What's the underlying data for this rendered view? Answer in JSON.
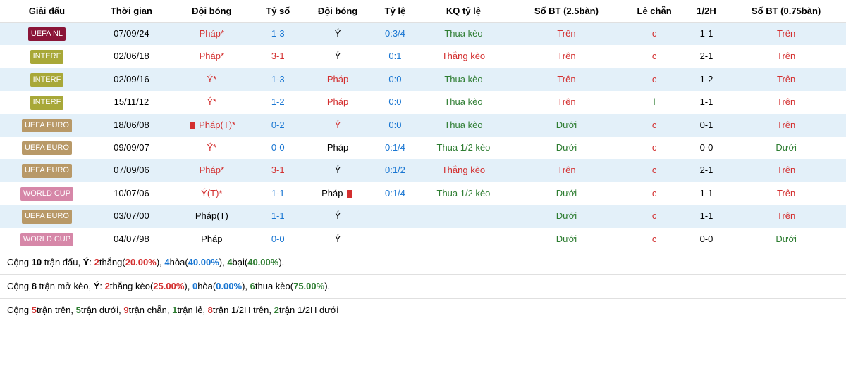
{
  "colors": {
    "red": "#d32f2f",
    "blue": "#1976d2",
    "green": "#2e7d32",
    "black": "#000000",
    "badge_uefanl": "#8a1538",
    "badge_interf": "#a8a838",
    "badge_uefaeuro": "#b89968",
    "badge_worldcup": "#d687a8"
  },
  "headers": [
    "Giải đấu",
    "Thời gian",
    "Đội bóng",
    "Tỷ số",
    "Đội bóng",
    "Tỷ lệ",
    "KQ tỷ lệ",
    "Số BT (2.5bàn)",
    "Lẻ chẵn",
    "1/2H",
    "Số BT (0.75bàn)"
  ],
  "rows": [
    {
      "comp": "UEFA NL",
      "comp_color": "badge_uefanl",
      "date": "07/09/24",
      "home": "Pháp",
      "home_red": false,
      "home_star": true,
      "home_color": "red",
      "score": "1-3",
      "score_color": "blue",
      "away": "Ý",
      "away_red": false,
      "away_star": false,
      "away_color": "black",
      "ratio": "0:3/4",
      "ratio_color": "blue",
      "result": "Thua kèo",
      "result_color": "green",
      "bt25": "Trên",
      "bt25_color": "red",
      "odd": "c",
      "odd_color": "red",
      "half": "1-1",
      "half_text": "",
      "bt075": "Trên",
      "bt075_color": "red"
    },
    {
      "comp": "INTERF",
      "comp_color": "badge_interf",
      "date": "02/06/18",
      "home": "Pháp",
      "home_red": false,
      "home_star": true,
      "home_color": "red",
      "score": "3-1",
      "score_color": "red",
      "away": "Ý",
      "away_red": false,
      "away_star": false,
      "away_color": "black",
      "ratio": "0:1",
      "ratio_color": "blue",
      "result": "Thắng kèo",
      "result_color": "red",
      "bt25": "Trên",
      "bt25_color": "red",
      "odd": "c",
      "odd_color": "red",
      "half": "2-1",
      "half_text": "",
      "bt075": "Trên",
      "bt075_color": "red"
    },
    {
      "comp": "INTERF",
      "comp_color": "badge_interf",
      "date": "02/09/16",
      "home": "Ý",
      "home_red": false,
      "home_star": true,
      "home_color": "red",
      "score": "1-3",
      "score_color": "blue",
      "away": "Pháp",
      "away_red": false,
      "away_star": false,
      "away_color": "red",
      "ratio": "0:0",
      "ratio_color": "blue",
      "result": "Thua kèo",
      "result_color": "green",
      "bt25": "Trên",
      "bt25_color": "red",
      "odd": "c",
      "odd_color": "red",
      "half": "1-2",
      "half_text": "",
      "bt075": "Trên",
      "bt075_color": "red"
    },
    {
      "comp": "INTERF",
      "comp_color": "badge_interf",
      "date": "15/11/12",
      "home": "Ý",
      "home_red": false,
      "home_star": true,
      "home_color": "red",
      "score": "1-2",
      "score_color": "blue",
      "away": "Pháp",
      "away_red": false,
      "away_star": false,
      "away_color": "red",
      "ratio": "0:0",
      "ratio_color": "blue",
      "result": "Thua kèo",
      "result_color": "green",
      "bt25": "Trên",
      "bt25_color": "red",
      "odd": "l",
      "odd_color": "green",
      "half": "1-1",
      "half_text": "",
      "bt075": "Trên",
      "bt075_color": "red"
    },
    {
      "comp": "UEFA EURO",
      "comp_color": "badge_uefaeuro",
      "date": "18/06/08",
      "home": "Pháp(T)",
      "home_red": true,
      "home_star": true,
      "home_color": "red",
      "score": "0-2",
      "score_color": "blue",
      "away": "Ý",
      "away_red": false,
      "away_star": false,
      "away_color": "red",
      "ratio": "0:0",
      "ratio_color": "blue",
      "result": "Thua kèo",
      "result_color": "green",
      "bt25": "Dưới",
      "bt25_color": "green",
      "odd": "c",
      "odd_color": "red",
      "half": "0-1",
      "half_text": "",
      "bt075": "Trên",
      "bt075_color": "red"
    },
    {
      "comp": "UEFA EURO",
      "comp_color": "badge_uefaeuro",
      "date": "09/09/07",
      "home": "Ý",
      "home_red": false,
      "home_star": true,
      "home_color": "red",
      "score": "0-0",
      "score_color": "blue",
      "away": "Pháp",
      "away_red": false,
      "away_star": false,
      "away_color": "black",
      "ratio": "0:1/4",
      "ratio_color": "blue",
      "result": "Thua 1/2 kèo",
      "result_color": "green",
      "bt25": "Dưới",
      "bt25_color": "green",
      "odd": "c",
      "odd_color": "red",
      "half": "0-0",
      "half_text": "",
      "bt075": "Dưới",
      "bt075_color": "green"
    },
    {
      "comp": "UEFA EURO",
      "comp_color": "badge_uefaeuro",
      "date": "07/09/06",
      "home": "Pháp",
      "home_red": false,
      "home_star": true,
      "home_color": "red",
      "score": "3-1",
      "score_color": "red",
      "away": "Ý",
      "away_red": false,
      "away_star": false,
      "away_color": "black",
      "ratio": "0:1/2",
      "ratio_color": "blue",
      "result": "Thắng kèo",
      "result_color": "red",
      "bt25": "Trên",
      "bt25_color": "red",
      "odd": "c",
      "odd_color": "red",
      "half": "2-1",
      "half_text": "",
      "bt075": "Trên",
      "bt075_color": "red"
    },
    {
      "comp": "WORLD CUP",
      "comp_color": "badge_worldcup",
      "date": "10/07/06",
      "home": "Ý(T)",
      "home_red": false,
      "home_star": true,
      "home_color": "red",
      "score": "1-1",
      "score_color": "blue",
      "away": "Pháp",
      "away_red": true,
      "away_star": false,
      "away_color": "black",
      "ratio": "0:1/4",
      "ratio_color": "blue",
      "result": "Thua 1/2 kèo",
      "result_color": "green",
      "bt25": "Dưới",
      "bt25_color": "green",
      "odd": "c",
      "odd_color": "red",
      "half": "1-1",
      "half_text": "",
      "bt075": "Trên",
      "bt075_color": "red"
    },
    {
      "comp": "UEFA EURO",
      "comp_color": "badge_uefaeuro",
      "date": "03/07/00",
      "home": "Pháp(T)",
      "home_red": false,
      "home_star": false,
      "home_color": "black",
      "score": "1-1",
      "score_color": "blue",
      "away": "Ý",
      "away_red": false,
      "away_star": false,
      "away_color": "black",
      "ratio": "",
      "ratio_color": "blue",
      "result": "",
      "result_color": "green",
      "bt25": "Dưới",
      "bt25_color": "green",
      "odd": "c",
      "odd_color": "red",
      "half": "1-1",
      "half_text": "",
      "bt075": "Trên",
      "bt075_color": "red"
    },
    {
      "comp": "WORLD CUP",
      "comp_color": "badge_worldcup",
      "date": "04/07/98",
      "home": "Pháp",
      "home_red": false,
      "home_star": false,
      "home_color": "black",
      "score": "0-0",
      "score_color": "blue",
      "away": "Ý",
      "away_red": false,
      "away_star": false,
      "away_color": "black",
      "ratio": "",
      "ratio_color": "blue",
      "result": "",
      "result_color": "green",
      "bt25": "Dưới",
      "bt25_color": "green",
      "odd": "c",
      "odd_color": "red",
      "half": "0-0",
      "half_text": "",
      "bt075": "Dưới",
      "bt075_color": "green"
    }
  ],
  "summary": [
    [
      {
        "t": "Cộng ",
        "c": "black"
      },
      {
        "t": "10",
        "c": "black",
        "b": true
      },
      {
        "t": " trận đấu, ",
        "c": "black"
      },
      {
        "t": "Ý",
        "c": "black",
        "b": true
      },
      {
        "t": ": ",
        "c": "black"
      },
      {
        "t": "2",
        "c": "red",
        "b": true
      },
      {
        "t": "thắng(",
        "c": "black"
      },
      {
        "t": "20.00%",
        "c": "red",
        "b": true
      },
      {
        "t": "), ",
        "c": "black"
      },
      {
        "t": "4",
        "c": "blue",
        "b": true
      },
      {
        "t": "hòa(",
        "c": "black"
      },
      {
        "t": "40.00%",
        "c": "blue",
        "b": true
      },
      {
        "t": "), ",
        "c": "black"
      },
      {
        "t": "4",
        "c": "green",
        "b": true
      },
      {
        "t": "bại(",
        "c": "black"
      },
      {
        "t": "40.00%",
        "c": "green",
        "b": true
      },
      {
        "t": ").",
        "c": "black"
      }
    ],
    [
      {
        "t": "Cộng ",
        "c": "black"
      },
      {
        "t": "8",
        "c": "black",
        "b": true
      },
      {
        "t": " trận mở kèo, ",
        "c": "black"
      },
      {
        "t": "Ý",
        "c": "black",
        "b": true
      },
      {
        "t": ": ",
        "c": "black"
      },
      {
        "t": "2",
        "c": "red",
        "b": true
      },
      {
        "t": "thắng kèo(",
        "c": "black"
      },
      {
        "t": "25.00%",
        "c": "red",
        "b": true
      },
      {
        "t": "), ",
        "c": "black"
      },
      {
        "t": "0",
        "c": "blue",
        "b": true
      },
      {
        "t": "hòa(",
        "c": "black"
      },
      {
        "t": "0.00%",
        "c": "blue",
        "b": true
      },
      {
        "t": "), ",
        "c": "black"
      },
      {
        "t": "6",
        "c": "green",
        "b": true
      },
      {
        "t": "thua kèo(",
        "c": "black"
      },
      {
        "t": "75.00%",
        "c": "green",
        "b": true
      },
      {
        "t": ").",
        "c": "black"
      }
    ],
    [
      {
        "t": "Cộng ",
        "c": "black"
      },
      {
        "t": "5",
        "c": "red",
        "b": true
      },
      {
        "t": "trận trên, ",
        "c": "black"
      },
      {
        "t": "5",
        "c": "green",
        "b": true
      },
      {
        "t": "trận dưới, ",
        "c": "black"
      },
      {
        "t": "9",
        "c": "red",
        "b": true
      },
      {
        "t": "trận chẵn, ",
        "c": "black"
      },
      {
        "t": "1",
        "c": "green",
        "b": true
      },
      {
        "t": "trận lẻ, ",
        "c": "black"
      },
      {
        "t": "8",
        "c": "red",
        "b": true
      },
      {
        "t": "trận 1/2H trên, ",
        "c": "black"
      },
      {
        "t": "2",
        "c": "green",
        "b": true
      },
      {
        "t": "trận 1/2H dưới",
        "c": "black"
      }
    ]
  ]
}
